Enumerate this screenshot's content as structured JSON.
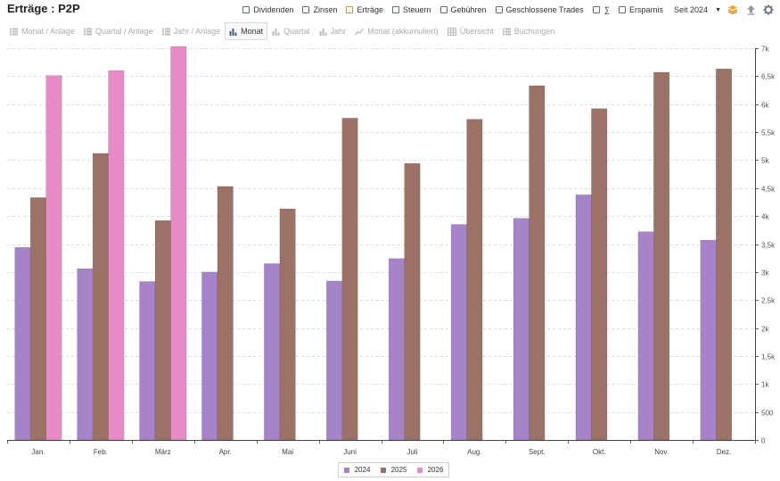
{
  "header": {
    "title": "Erträge : P2P",
    "filters": [
      {
        "label": "Dividenden",
        "box": "blue"
      },
      {
        "label": "Zinsen",
        "box": "blue"
      },
      {
        "label": "Erträge",
        "box": "orange"
      },
      {
        "label": "Steuern",
        "box": "blue"
      },
      {
        "label": "Gebühren",
        "box": "blue"
      },
      {
        "label": "Geschlossene Trades",
        "box": "blue"
      },
      {
        "label": "∑",
        "box": "blue"
      },
      {
        "label": "Ersparnis",
        "box": "blue"
      }
    ],
    "year_select": "Seit 2024",
    "icons": [
      "layers-icon",
      "upload-icon",
      "gear-icon"
    ]
  },
  "toolbar": {
    "tabs": [
      {
        "label": "Monat / Anlage",
        "icon": "list-icon",
        "active": false
      },
      {
        "label": "Quartal / Anlage",
        "icon": "list-icon",
        "active": false
      },
      {
        "label": "Jahr / Anlage",
        "icon": "list-icon",
        "active": false
      },
      {
        "label": "Monat",
        "icon": "bar-chart-icon",
        "active": true
      },
      {
        "label": "Quartal",
        "icon": "bar-chart-icon",
        "active": false
      },
      {
        "label": "Jahr",
        "icon": "bar-chart-icon",
        "active": false
      },
      {
        "label": "Monat (akkumuliert)",
        "icon": "line-chart-icon",
        "active": false
      },
      {
        "label": "Übersicht",
        "icon": "table-icon",
        "active": false
      },
      {
        "label": "Buchungen",
        "icon": "list-icon",
        "active": false
      }
    ]
  },
  "chart_data": {
    "type": "bar",
    "title": "",
    "xlabel": "",
    "ylabel": "",
    "ylim": [
      0,
      7000
    ],
    "y_ticks": [
      {
        "value": 0,
        "label": "0"
      },
      {
        "value": 500,
        "label": "500"
      },
      {
        "value": 1000,
        "label": "1k"
      },
      {
        "value": 1500,
        "label": "1,5k"
      },
      {
        "value": 2000,
        "label": "2k"
      },
      {
        "value": 2500,
        "label": "2,5k"
      },
      {
        "value": 3000,
        "label": "3k"
      },
      {
        "value": 3500,
        "label": "3,5k"
      },
      {
        "value": 4000,
        "label": "4k"
      },
      {
        "value": 4500,
        "label": "4,5k"
      },
      {
        "value": 5000,
        "label": "5k"
      },
      {
        "value": 5500,
        "label": "5,5k"
      },
      {
        "value": 6000,
        "label": "6k"
      },
      {
        "value": 6500,
        "label": "6,5k"
      },
      {
        "value": 7000,
        "label": "7k"
      }
    ],
    "categories": [
      "Jan.",
      "Feb.",
      "März",
      "Apr.",
      "Mai",
      "Juni",
      "Juli",
      "Aug.",
      "Sept.",
      "Okt.",
      "Nov.",
      "Dez."
    ],
    "series": [
      {
        "name": "2024",
        "color": "#a783c9",
        "values": [
          3440,
          3060,
          2830,
          3000,
          3150,
          2840,
          3240,
          3850,
          3960,
          4380,
          3720,
          3570
        ]
      },
      {
        "name": "2025",
        "color": "#9c7166",
        "values": [
          4330,
          5120,
          3920,
          4530,
          4130,
          5750,
          4940,
          5730,
          6330,
          5920,
          6570,
          6630
        ]
      },
      {
        "name": "2026",
        "color": "#e78ac6",
        "values": [
          6510,
          6600,
          7030,
          null,
          null,
          null,
          null,
          null,
          null,
          null,
          null,
          null
        ]
      }
    ],
    "grid": true,
    "legend": "bottom-center"
  }
}
